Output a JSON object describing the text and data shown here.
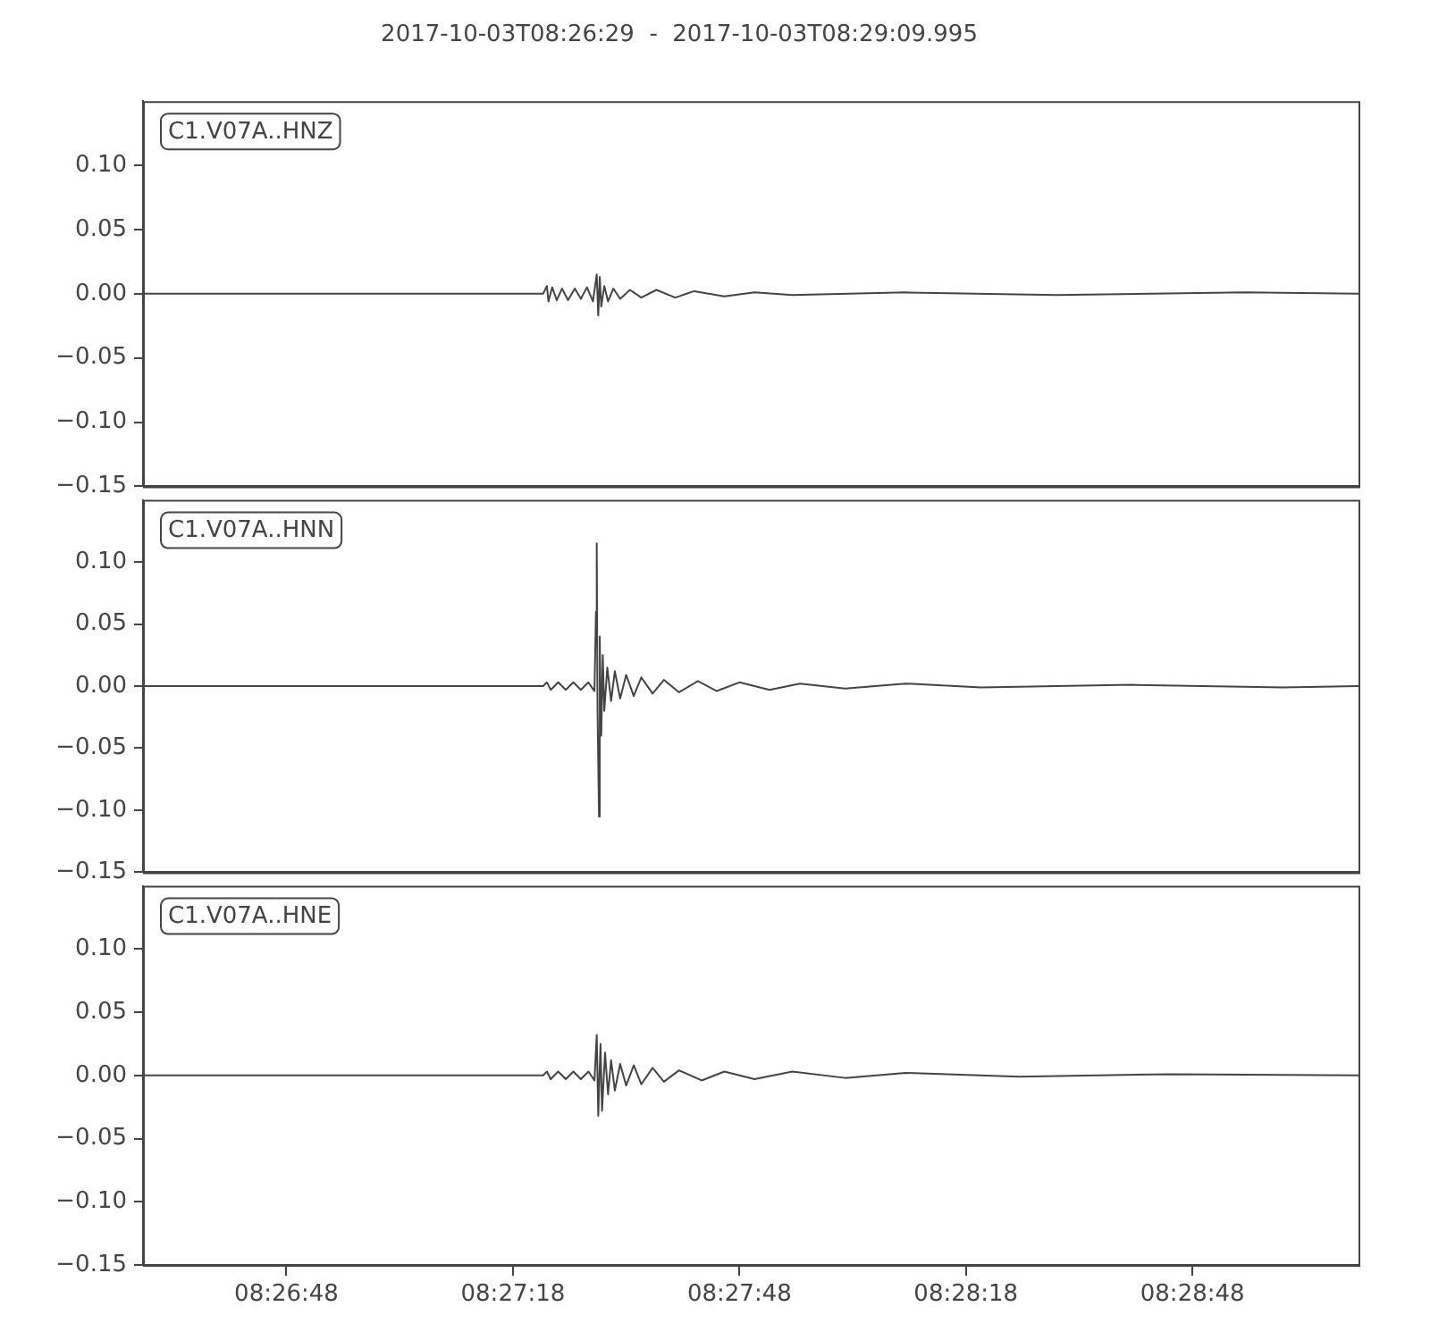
{
  "chart_data": [
    {
      "type": "line",
      "title": "2017-10-03T08:26:29  -  2017-10-03T08:29:09.995",
      "annotations": [
        "C1.V07A..HNZ"
      ],
      "tick_labels": "y",
      "xlim": [
        "2017-10-03T08:26:29",
        "2017-10-03T08:29:10"
      ],
      "ylim": [
        -0.15,
        0.15
      ],
      "yticks": [
        {
          "value": -0.15,
          "label": "−0.15"
        },
        {
          "value": -0.1,
          "label": "−0.10"
        },
        {
          "value": -0.05,
          "label": "−0.05"
        },
        {
          "value": 0,
          "label": "0.00"
        },
        {
          "value": 0.05,
          "label": "0.05"
        },
        {
          "value": 0.1,
          "label": "0.10"
        }
      ],
      "series": [
        {
          "color": "#444444",
          "x": [
            "2017-10-03T08:26:29",
            "2017-10-03T08:27:22.0",
            "2017-10-03T08:27:22.5",
            "2017-10-03T08:27:22.7",
            "2017-10-03T08:27:23.2",
            "2017-10-03T08:27:23.8",
            "2017-10-03T08:27:24.5",
            "2017-10-03T08:27:25.3",
            "2017-10-03T08:27:26.2",
            "2017-10-03T08:27:27.0",
            "2017-10-03T08:27:27.8",
            "2017-10-03T08:27:28.6",
            "2017-10-03T08:27:29.1",
            "2017-10-03T08:27:29.3",
            "2017-10-03T08:27:29.5",
            "2017-10-03T08:27:29.7",
            "2017-10-03T08:27:30.1",
            "2017-10-03T08:27:30.6",
            "2017-10-03T08:27:31.3",
            "2017-10-03T08:27:32.2",
            "2017-10-03T08:27:33.5",
            "2017-10-03T08:27:35.0",
            "2017-10-03T08:27:37.0",
            "2017-10-03T08:27:39.5",
            "2017-10-03T08:27:42.0",
            "2017-10-03T08:27:46.0",
            "2017-10-03T08:27:50.0",
            "2017-10-03T08:27:55.0",
            "2017-10-03T08:28:10",
            "2017-10-03T08:28:30",
            "2017-10-03T08:28:55",
            "2017-10-03T08:29:10"
          ],
          "values": [
            0,
            0,
            0.006,
            -0.006,
            0.005,
            -0.005,
            0.004,
            -0.005,
            0.004,
            -0.004,
            0.005,
            -0.006,
            0.015,
            -0.017,
            0.013,
            -0.01,
            0.006,
            -0.006,
            0.004,
            -0.004,
            0.003,
            -0.003,
            0.003,
            -0.003,
            0.002,
            -0.002,
            0.001,
            -0.001,
            0.001,
            -0.001,
            0.001,
            0
          ]
        }
      ]
    },
    {
      "type": "line",
      "annotations": [
        "C1.V07A..HNN"
      ],
      "tick_labels": "y",
      "xlim": [
        "2017-10-03T08:26:29",
        "2017-10-03T08:29:10"
      ],
      "ylim": [
        -0.15,
        0.15
      ],
      "yticks": [
        {
          "value": -0.15,
          "label": "−0.15"
        },
        {
          "value": -0.1,
          "label": "−0.10"
        },
        {
          "value": -0.05,
          "label": "−0.05"
        },
        {
          "value": 0,
          "label": "0.00"
        },
        {
          "value": 0.05,
          "label": "0.05"
        },
        {
          "value": 0.1,
          "label": "0.10"
        }
      ],
      "series": [
        {
          "color": "#444444",
          "x": [
            "2017-10-03T08:26:29",
            "2017-10-03T08:27:22.0",
            "2017-10-03T08:27:22.5",
            "2017-10-03T08:27:23.0",
            "2017-10-03T08:27:24.0",
            "2017-10-03T08:27:25.0",
            "2017-10-03T08:27:26.0",
            "2017-10-03T08:27:27.0",
            "2017-10-03T08:27:28.0",
            "2017-10-03T08:27:28.8",
            "2017-10-03T08:27:29.0",
            "2017-10-03T08:27:29.1",
            "2017-10-03T08:27:29.2",
            "2017-10-03T08:27:29.4",
            "2017-10-03T08:27:29.5",
            "2017-10-03T08:27:29.7",
            "2017-10-03T08:27:29.9",
            "2017-10-03T08:27:30.1",
            "2017-10-03T08:27:30.5",
            "2017-10-03T08:27:31.0",
            "2017-10-03T08:27:31.5",
            "2017-10-03T08:27:32.2",
            "2017-10-03T08:27:33.0",
            "2017-10-03T08:27:34.0",
            "2017-10-03T08:27:35.0",
            "2017-10-03T08:27:36.5",
            "2017-10-03T08:27:38.0",
            "2017-10-03T08:27:40.0",
            "2017-10-03T08:27:42.5",
            "2017-10-03T08:27:45.0",
            "2017-10-03T08:27:48.0",
            "2017-10-03T08:27:52.0",
            "2017-10-03T08:27:56.0",
            "2017-10-03T08:28:02",
            "2017-10-03T08:28:10",
            "2017-10-03T08:28:20",
            "2017-10-03T08:28:40",
            "2017-10-03T08:29:00",
            "2017-10-03T08:29:10"
          ],
          "values": [
            0,
            0,
            0.003,
            -0.003,
            0.003,
            -0.003,
            0.003,
            -0.003,
            0.003,
            -0.004,
            0.06,
            0.115,
            -0.018,
            -0.105,
            0.04,
            -0.04,
            0.025,
            -0.02,
            0.015,
            -0.012,
            0.012,
            -0.01,
            0.009,
            -0.008,
            0.007,
            -0.006,
            0.005,
            -0.005,
            0.004,
            -0.004,
            0.003,
            -0.003,
            0.002,
            -0.002,
            0.002,
            -0.001,
            0.001,
            -0.001,
            0
          ]
        }
      ]
    },
    {
      "type": "line",
      "annotations": [
        "C1.V07A..HNE"
      ],
      "xlim": [
        "2017-10-03T08:26:29",
        "2017-10-03T08:29:10"
      ],
      "ylim": [
        -0.15,
        0.15
      ],
      "xticks": [
        {
          "value": "2017-10-03T08:26:48",
          "label": "08:26:48"
        },
        {
          "value": "2017-10-03T08:27:18",
          "label": "08:27:18"
        },
        {
          "value": "2017-10-03T08:27:48",
          "label": "08:27:48"
        },
        {
          "value": "2017-10-03T08:28:18",
          "label": "08:28:18"
        },
        {
          "value": "2017-10-03T08:28:48",
          "label": "08:28:48"
        }
      ],
      "yticks": [
        {
          "value": -0.15,
          "label": "−0.15"
        },
        {
          "value": -0.1,
          "label": "−0.10"
        },
        {
          "value": -0.05,
          "label": "−0.05"
        },
        {
          "value": 0,
          "label": "0.00"
        },
        {
          "value": 0.05,
          "label": "0.05"
        },
        {
          "value": 0.1,
          "label": "0.10"
        }
      ],
      "series": [
        {
          "color": "#444444",
          "x": [
            "2017-10-03T08:26:29",
            "2017-10-03T08:27:22.0",
            "2017-10-03T08:27:22.5",
            "2017-10-03T08:27:23.0",
            "2017-10-03T08:27:24.0",
            "2017-10-03T08:27:25.0",
            "2017-10-03T08:27:26.0",
            "2017-10-03T08:27:27.0",
            "2017-10-03T08:27:28.0",
            "2017-10-03T08:27:28.8",
            "2017-10-03T08:27:29.1",
            "2017-10-03T08:27:29.3",
            "2017-10-03T08:27:29.6",
            "2017-10-03T08:27:29.8",
            "2017-10-03T08:27:30.2",
            "2017-10-03T08:27:30.6",
            "2017-10-03T08:27:31.0",
            "2017-10-03T08:27:31.5",
            "2017-10-03T08:27:32.2",
            "2017-10-03T08:27:33.0",
            "2017-10-03T08:27:34.0",
            "2017-10-03T08:27:35.0",
            "2017-10-03T08:27:36.5",
            "2017-10-03T08:27:38.0",
            "2017-10-03T08:27:40.0",
            "2017-10-03T08:27:43.0",
            "2017-10-03T08:27:46.0",
            "2017-10-03T08:27:50.0",
            "2017-10-03T08:27:55.0",
            "2017-10-03T08:28:02",
            "2017-10-03T08:28:10",
            "2017-10-03T08:28:25",
            "2017-10-03T08:28:45",
            "2017-10-03T08:29:10"
          ],
          "values": [
            0,
            0,
            0.003,
            -0.003,
            0.003,
            -0.003,
            0.003,
            -0.003,
            0.003,
            -0.004,
            0.032,
            -0.032,
            0.025,
            -0.028,
            0.018,
            -0.015,
            0.012,
            -0.012,
            0.009,
            -0.008,
            0.008,
            -0.007,
            0.006,
            -0.005,
            0.004,
            -0.004,
            0.003,
            -0.003,
            0.003,
            -0.002,
            0.002,
            -0.001,
            0.001,
            0
          ]
        }
      ]
    }
  ]
}
